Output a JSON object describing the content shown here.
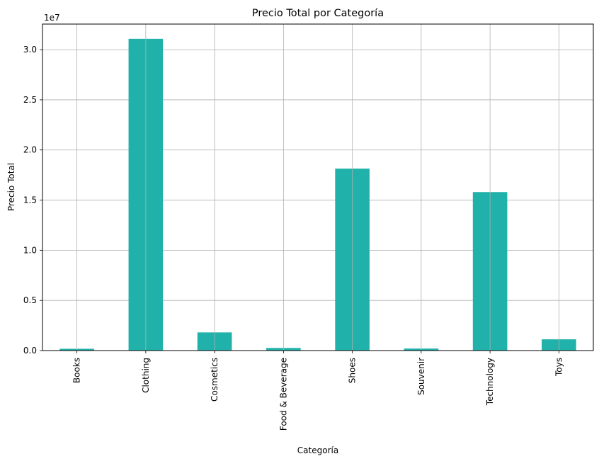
{
  "chart_data": {
    "type": "bar",
    "title": "Precio Total por Categoría",
    "xlabel": "Categoría",
    "ylabel": "Precio Total",
    "y_offset_label": "1e7",
    "y_scale_factor": 10000000,
    "categories": [
      "Books",
      "Clothing",
      "Cosmetics",
      "Food & Beverage",
      "Shoes",
      "Souvenir",
      "Technology",
      "Toys"
    ],
    "values": [
      180000,
      31080000,
      1810000,
      260000,
      18140000,
      200000,
      15800000,
      1120000
    ],
    "ylim": [
      0,
      32550000
    ],
    "yticks": [
      0,
      5000000,
      10000000,
      15000000,
      20000000,
      25000000,
      30000000
    ],
    "ytick_labels": [
      "0.0",
      "0.5",
      "1.0",
      "1.5",
      "2.0",
      "2.5",
      "3.0"
    ],
    "grid": true,
    "bar_color": "#20b2aa",
    "grid_color": "#b0b0b0"
  }
}
